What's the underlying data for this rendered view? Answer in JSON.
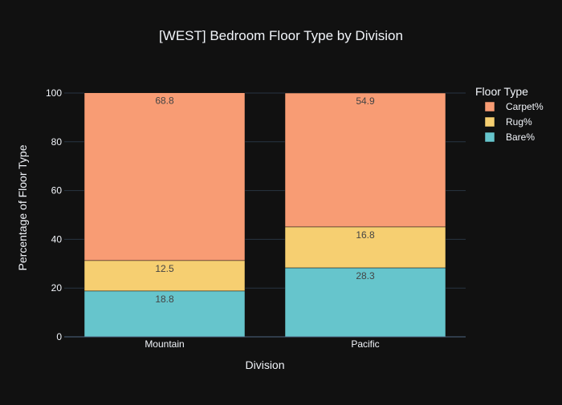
{
  "chart_data": {
    "type": "bar",
    "stacked": true,
    "title": "[WEST] Bedroom Floor Type by Division",
    "xlabel": "Division",
    "ylabel": "Percentage of Floor Type",
    "categories": [
      "Mountain",
      "Pacific"
    ],
    "series": [
      {
        "name": "Bare%",
        "values": [
          18.8,
          28.3
        ],
        "color": "#66c5cc"
      },
      {
        "name": "Rug%",
        "values": [
          12.5,
          16.8
        ],
        "color": "#f6cf71"
      },
      {
        "name": "Carpet%",
        "values": [
          68.8,
          54.9
        ],
        "color": "#f89c74"
      }
    ],
    "legend_order": [
      "Carpet%",
      "Rug%",
      "Bare%"
    ],
    "legend_title": "Floor Type",
    "legend_position": "top-right",
    "ylim": [
      0,
      100
    ],
    "yticks": [
      0,
      20,
      40,
      60,
      80,
      100
    ],
    "grid": true
  }
}
